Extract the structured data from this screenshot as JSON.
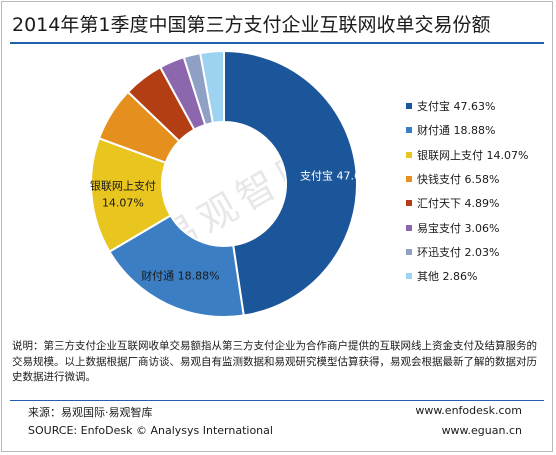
{
  "title": "2014年第1季度中国第三方支付企业互联网收单交易份额",
  "watermark": "易观智库",
  "chart_data": {
    "type": "pie",
    "title": "2014年第1季度中国第三方支付企业互联网收单交易份额",
    "donut": true,
    "categories": [
      "支付宝",
      "财付通",
      "银联网上支付",
      "快钱支付",
      "汇付天下",
      "易宝支付",
      "环迅支付",
      "其他"
    ],
    "values": [
      47.63,
      18.88,
      14.07,
      6.58,
      4.89,
      3.06,
      2.03,
      2.86
    ],
    "colors": [
      "#1a5699",
      "#3b7ec3",
      "#e8c51f",
      "#e5901e",
      "#b33e13",
      "#8d67ae",
      "#8ea0c4",
      "#9dd3f0"
    ],
    "legend": [
      "支付宝 47.63%",
      "财付通 18.88%",
      "银联网上支付 14.07%",
      "快钱支付 6.58%",
      "汇付天下 4.89%",
      "易宝支付 3.06%",
      "环迅支付 2.03%",
      "其他 2.86%"
    ],
    "legend_position": "right",
    "data_labels": [
      {
        "line1": "支付宝 47.63%",
        "line2": ""
      },
      {
        "line1": "财付通 18.88%",
        "line2": ""
      },
      {
        "line1": "银联网上支付",
        "line2": "14.07%"
      }
    ]
  },
  "note": "说明：第三方支付企业互联网收单交易额指从第三方支付企业为合作商户提供的互联网线上资金支付及结算服务的交易规模。以上数据根据厂商访谈、易观自有监测数据和易观研究模型估算获得，易观会根据最新了解的数据对历史数据进行微调。",
  "footer": {
    "source_cn": "来源：易观国际·易观智库",
    "source_en": "SOURCE: EnfoDesk © Analysys International",
    "url1": "www.enfodesk.com",
    "url2": "www.eguan.cn"
  }
}
